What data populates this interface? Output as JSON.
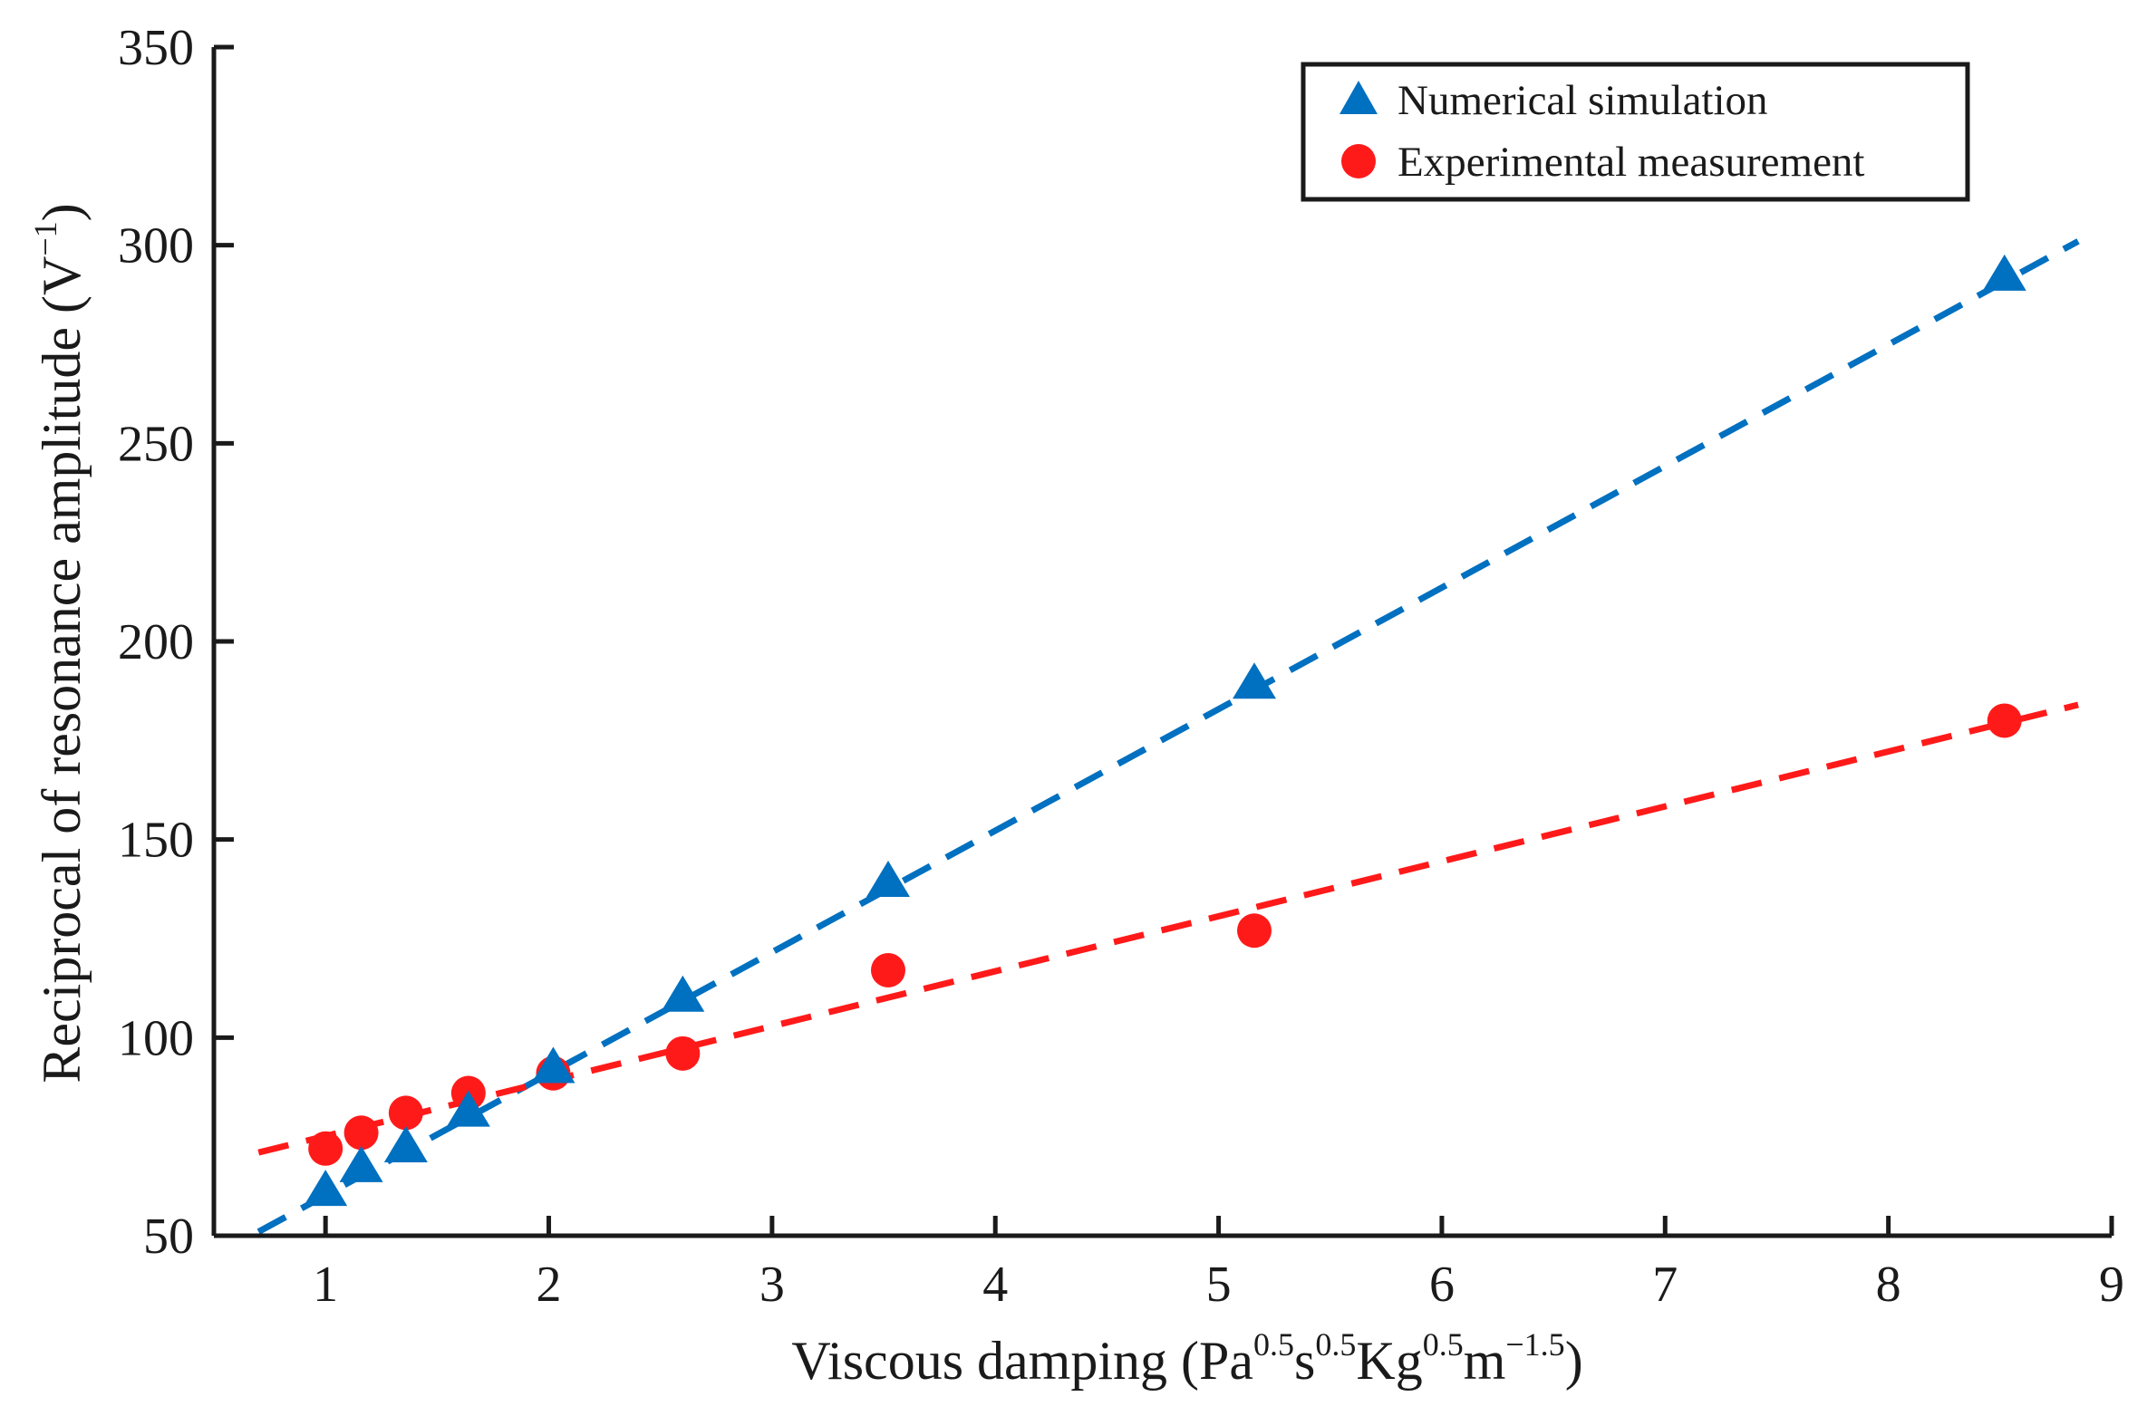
{
  "chart_data": {
    "type": "scatter",
    "title": "",
    "xlabel": {
      "text": "Viscous damping (Pa",
      "e1": "0.5",
      "s": "s",
      "e2": "0.5",
      "kg": "Kg",
      "e3": "0.5",
      "m": "m",
      "e4": "−1.5",
      "close": ")"
    },
    "ylabel": {
      "text": "Reciprocal of resonance amplitude (V",
      "exp": "−1",
      "close": ")"
    },
    "xlim": [
      0.5,
      9
    ],
    "ylim": [
      50,
      350
    ],
    "xticks": [
      "1",
      "2",
      "3",
      "4",
      "5",
      "6",
      "7",
      "8",
      "9"
    ],
    "yticks": [
      "50",
      "100",
      "150",
      "200",
      "250",
      "300",
      "350"
    ],
    "grid": false,
    "legend_position": "top-right",
    "series": [
      {
        "name": "Numerical simulation",
        "marker": "triangle",
        "color": "#0070c0",
        "x": [
          1.0,
          1.16,
          1.36,
          1.64,
          2.02,
          2.6,
          3.52,
          5.16,
          8.52
        ],
        "y": [
          61,
          67,
          72,
          81,
          92,
          110,
          139,
          189,
          292
        ],
        "fit_line": {
          "x": [
            0.7,
            8.85
          ],
          "y": [
            51,
            301
          ],
          "style": "dashed"
        }
      },
      {
        "name": "Experimental measurement",
        "marker": "circle",
        "color": "#ff1a1a",
        "x": [
          1.0,
          1.16,
          1.36,
          1.64,
          2.02,
          2.6,
          3.52,
          5.16,
          8.52
        ],
        "y": [
          72,
          76,
          81,
          86,
          91,
          96,
          117,
          127,
          180
        ],
        "fit_line": {
          "x": [
            0.7,
            8.85
          ],
          "y": [
            71,
            184
          ],
          "style": "dashed"
        }
      }
    ]
  }
}
